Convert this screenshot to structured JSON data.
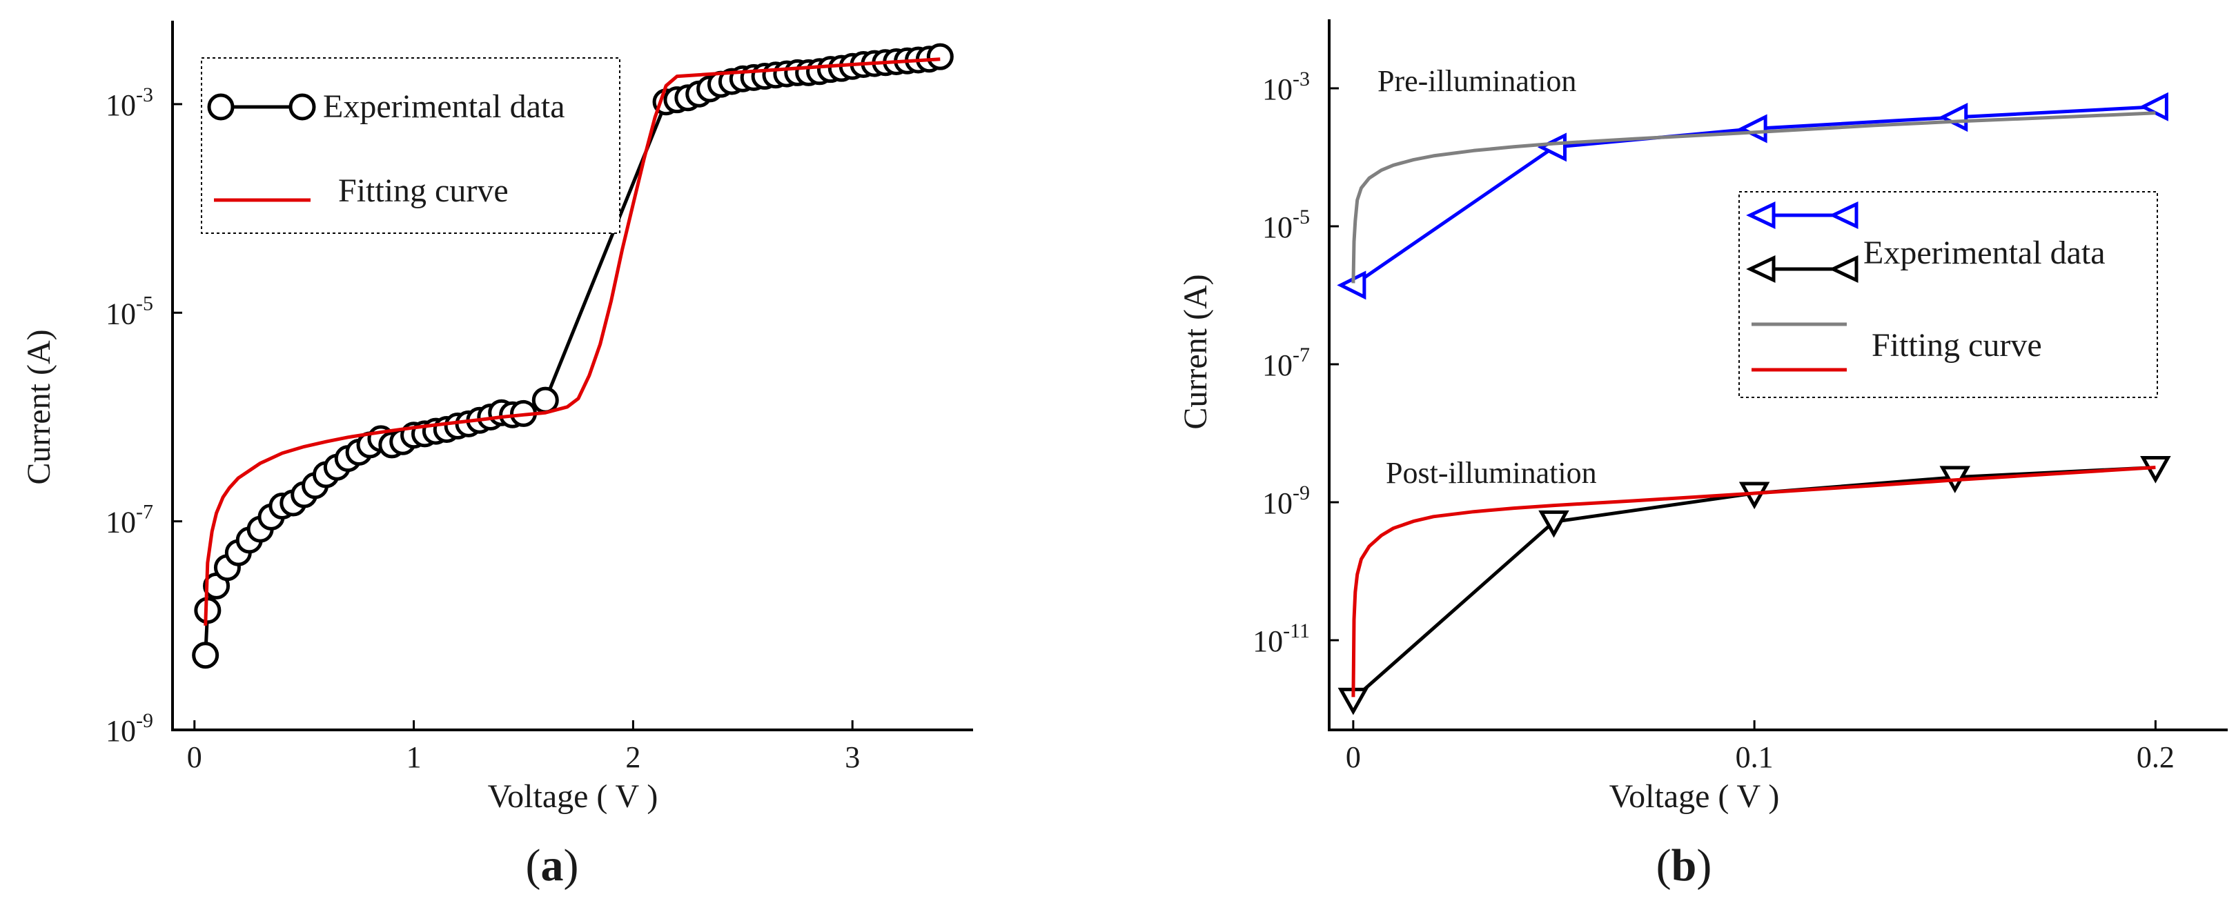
{
  "chart_data": [
    {
      "panel": "(a)",
      "panel_letter": "a",
      "type": "line",
      "xlabel": "Voltage ( V )",
      "ylabel": "Current (A)",
      "xlim": [
        -0.1,
        3.55
      ],
      "ylim_log10": [
        -9,
        -2.2
      ],
      "y_scale": "log",
      "x_ticks": [
        "0",
        "1",
        "2",
        "3"
      ],
      "x_tick_values": [
        0,
        1,
        2,
        3
      ],
      "y_ticks": [
        {
          "base": "10",
          "exp": "-9",
          "value": -9
        },
        {
          "base": "10",
          "exp": "-7",
          "value": -7
        },
        {
          "base": "10",
          "exp": "-5",
          "value": -5
        },
        {
          "base": "10",
          "exp": "-3",
          "value": -3
        }
      ],
      "legend": {
        "placement": "top-left",
        "entries": [
          {
            "label": "Experimental data",
            "color": "#000000",
            "marker": "circle"
          },
          {
            "label": "Fitting curve",
            "color": "#e00000",
            "marker": "none"
          }
        ]
      },
      "series": [
        {
          "name": "Experimental data",
          "color": "#000000",
          "marker": "circle",
          "x": [
            0.05,
            0.06,
            0.1,
            0.15,
            0.2,
            0.25,
            0.3,
            0.35,
            0.4,
            0.45,
            0.5,
            0.55,
            0.6,
            0.65,
            0.7,
            0.75,
            0.8,
            0.85,
            0.9,
            0.95,
            1.0,
            1.05,
            1.1,
            1.15,
            1.2,
            1.25,
            1.3,
            1.35,
            1.4,
            1.45,
            1.5,
            1.6,
            2.15,
            2.2,
            2.25,
            2.3,
            2.35,
            2.4,
            2.45,
            2.5,
            2.55,
            2.6,
            2.65,
            2.7,
            2.75,
            2.8,
            2.85,
            2.9,
            2.95,
            3.0,
            3.05,
            3.1,
            3.15,
            3.2,
            3.25,
            3.3,
            3.35,
            3.4
          ],
          "y": [
            5.2e-09,
            1.4e-08,
            2.4e-08,
            3.6e-08,
            5e-08,
            6.6e-08,
            8.4e-08,
            1.1e-07,
            1.4e-07,
            1.5e-07,
            1.8e-07,
            2.2e-07,
            2.8e-07,
            3.3e-07,
            4e-07,
            4.6e-07,
            5.4e-07,
            6.2e-07,
            5.4e-07,
            5.8e-07,
            6.7e-07,
            6.9e-07,
            7.3e-07,
            7.6e-07,
            8.2e-07,
            8.6e-07,
            9.3e-07,
            1e-06,
            1.1e-06,
            1.05e-06,
            1.08e-06,
            1.45e-06,
            0.00105,
            0.0011,
            0.00115,
            0.00125,
            0.0014,
            0.00155,
            0.00165,
            0.00175,
            0.0018,
            0.00185,
            0.0019,
            0.00195,
            0.002,
            0.002,
            0.00205,
            0.00215,
            0.0022,
            0.0023,
            0.0024,
            0.00245,
            0.0025,
            0.00255,
            0.0026,
            0.00265,
            0.0027,
            0.00285
          ]
        },
        {
          "name": "Fitting curve",
          "color": "#e00000",
          "marker": "none",
          "x": [
            0.05,
            0.06,
            0.08,
            0.1,
            0.13,
            0.16,
            0.2,
            0.3,
            0.4,
            0.5,
            0.6,
            0.7,
            0.8,
            0.9,
            1.0,
            1.1,
            1.2,
            1.3,
            1.4,
            1.5,
            1.6,
            1.7,
            1.75,
            1.8,
            1.85,
            1.9,
            1.95,
            2.0,
            2.05,
            2.1,
            2.15,
            2.2,
            2.6,
            3.0,
            3.4
          ],
          "y": [
            1e-08,
            4e-08,
            8e-08,
            1.2e-07,
            1.7e-07,
            2.1e-07,
            2.6e-07,
            3.6e-07,
            4.5e-07,
            5.2e-07,
            5.8e-07,
            6.4e-07,
            6.9e-07,
            7.4e-07,
            7.9e-07,
            8.4e-07,
            8.9e-07,
            9.4e-07,
            1e-06,
            1.05e-06,
            1.1e-06,
            1.25e-06,
            1.5e-06,
            2.5e-06,
            5e-06,
            1.3e-05,
            4e-05,
            0.00011,
            0.0003,
            0.00075,
            0.0015,
            0.00185,
            0.0021,
            0.0024,
            0.0027
          ]
        }
      ]
    },
    {
      "panel": "(b)",
      "panel_letter": "b",
      "type": "line",
      "xlabel": "Voltage ( V )",
      "ylabel": "Current (A)",
      "xlim": [
        -0.006,
        0.218
      ],
      "ylim_log10": [
        -12.3,
        -2
      ],
      "y_scale": "log",
      "x_ticks": [
        "0",
        "0.1",
        "0.2"
      ],
      "x_tick_values": [
        0,
        0.1,
        0.2
      ],
      "y_ticks": [
        {
          "base": "10",
          "exp": "-11",
          "value": -11
        },
        {
          "base": "10",
          "exp": "-9",
          "value": -9
        },
        {
          "base": "10",
          "exp": "-7",
          "value": -7
        },
        {
          "base": "10",
          "exp": "-5",
          "value": -5
        },
        {
          "base": "10",
          "exp": "-3",
          "value": -3
        }
      ],
      "annotations": [
        "Pre-illumination",
        "Post-illumination"
      ],
      "legend": {
        "placement": "center-right",
        "entries": [
          {
            "label": "Experimental data",
            "color": "#0000ff",
            "marker": "triangle-left"
          },
          {
            "label": "",
            "color": "#000000",
            "marker": "triangle-left"
          },
          {
            "label": "Fitting curve",
            "color": "#808080",
            "marker": "none"
          },
          {
            "label": "",
            "color": "#e00000",
            "marker": "none"
          }
        ]
      },
      "series": [
        {
          "name": "Experimental data",
          "group": "Pre-illumination",
          "color": "#0000ff",
          "marker": "triangle-left",
          "x": [
            0.0,
            0.05,
            0.1,
            0.15,
            0.2
          ],
          "y": [
            1.4e-06,
            0.00014,
            0.00026,
            0.00038,
            0.00054
          ]
        },
        {
          "name": "Fitting curve",
          "group": "Pre-illumination",
          "color": "#808080",
          "marker": "none",
          "x": [
            0.0,
            0.0002,
            0.0005,
            0.001,
            0.002,
            0.004,
            0.007,
            0.01,
            0.015,
            0.02,
            0.03,
            0.04,
            0.05,
            0.07,
            0.1,
            0.13,
            0.15,
            0.18,
            0.2
          ],
          "y": [
            1.5e-06,
            6e-06,
            1.2e-05,
            2.4e-05,
            3.6e-05,
            5e-05,
            6.5e-05,
            7.7e-05,
            9.2e-05,
            0.000105,
            0.000125,
            0.000142,
            0.000158,
            0.000185,
            0.00023,
            0.00029,
            0.00033,
            0.00039,
            0.00044
          ]
        },
        {
          "name": "Experimental data",
          "group": "Post-illumination",
          "color": "#000000",
          "marker": "triangle-down",
          "x": [
            0.0,
            0.05,
            0.1,
            0.15,
            0.2
          ],
          "y": [
            1.4e-12,
            5.2e-10,
            1.35e-09,
            2.3e-09,
            3.2e-09
          ]
        },
        {
          "name": "Fitting curve",
          "group": "Post-illumination",
          "color": "#e00000",
          "marker": "none",
          "x": [
            0.0,
            0.0002,
            0.0005,
            0.001,
            0.002,
            0.004,
            0.007,
            0.01,
            0.015,
            0.02,
            0.03,
            0.04,
            0.05,
            0.07,
            0.1,
            0.13,
            0.15,
            0.18,
            0.2
          ],
          "y": [
            1.5e-12,
            2e-11,
            5e-11,
            9e-11,
            1.5e-10,
            2.3e-10,
            3.3e-10,
            4.2e-10,
            5.3e-10,
            6.2e-10,
            7.3e-10,
            8.2e-10,
            9e-10,
            1.05e-09,
            1.35e-09,
            1.75e-09,
            2.1e-09,
            2.7e-09,
            3.2e-09
          ]
        }
      ]
    }
  ]
}
